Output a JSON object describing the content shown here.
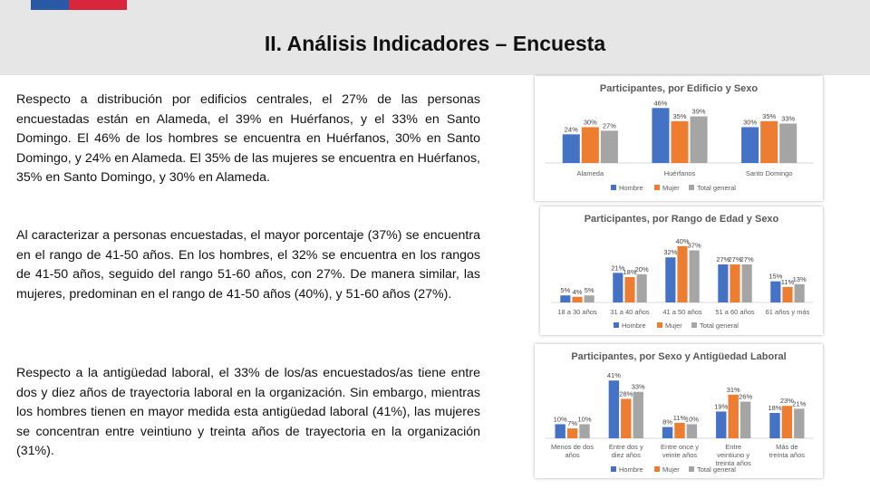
{
  "header": {
    "title": "II. Análisis Indicadores – Encuesta"
  },
  "paragraphs": [
    "Respecto a distribución por edificios centrales, el 27% de las personas encuestadas están en Alameda, el 39% en Huérfanos, y el 33% en Santo Domingo. El 46% de los hombres se encuentra en Huérfanos, 30% en Santo Domingo, y 24% en Alameda. El 35% de las mujeres se encuentra en Huérfanos, 35% en Santo Domingo, y 30% en Alameda.",
    "Al caracterizar a personas encuestadas, el mayor porcentaje (37%) se encuentra en el rango de 41-50 años. En los hombres, el 32% se encuentra en los rangos de 41-50 años, seguido del rango 51-60 años, con 27%. De manera similar, las mujeres, predominan en el rango de 41-50 años (40%), y 51-60 años (27%).",
    "Respecto a la antigüedad laboral, el 33% de los/as encuestados/as tiene entre dos y diez años de trayectoria laboral en la organización. Sin embargo, mientras los hombres tienen en mayor medida esta antigüedad laboral (41%), las mujeres se concentran entre veintiuno y treinta años de trayectoria en la organización (31%)."
  ],
  "colors": {
    "hombre": "#4472c4",
    "mujer": "#ed7d31",
    "total": "#a5a5a5"
  },
  "chart_data": [
    {
      "type": "bar",
      "title": "Participantes, por Edificio y Sexo",
      "categories": [
        "Alameda",
        "Huérfanos",
        "Santo Domingo"
      ],
      "series": [
        {
          "name": "Hombre",
          "values": [
            24,
            46,
            30
          ]
        },
        {
          "name": "Mujer",
          "values": [
            30,
            35,
            35
          ]
        },
        {
          "name": "Total general",
          "values": [
            27,
            39,
            33
          ]
        }
      ],
      "ylim": [
        0,
        50
      ],
      "legend": "bottom"
    },
    {
      "type": "bar",
      "title": "Participantes, por Rango de Edad y Sexo",
      "categories": [
        "18 a 30 años",
        "31 a 40 años",
        "41 a 50 años",
        "51 a 60 años",
        "61 años y más"
      ],
      "series": [
        {
          "name": "Hombre",
          "values": [
            5,
            21,
            32,
            27,
            15
          ]
        },
        {
          "name": "Mujer",
          "values": [
            4,
            18,
            40,
            27,
            11
          ]
        },
        {
          "name": "Total general",
          "values": [
            5,
            20,
            37,
            27,
            13
          ]
        }
      ],
      "ylim": [
        0,
        45
      ],
      "legend": "bottom"
    },
    {
      "type": "bar",
      "title": "Participantes, por Sexo y Antigüedad Laboral",
      "categories": [
        "Menos de dos años",
        "Entre dos y diez años",
        "Entre once y veinte años",
        "Entre veintiuno y treinta años",
        "Más de treinta años"
      ],
      "series": [
        {
          "name": "Hombre",
          "values": [
            10,
            41,
            8,
            19,
            18
          ]
        },
        {
          "name": "Mujer",
          "values": [
            7,
            28,
            11,
            31,
            23
          ]
        },
        {
          "name": "Total general",
          "values": [
            10,
            33,
            10,
            26,
            21
          ]
        }
      ],
      "ylim": [
        0,
        45
      ],
      "legend": "bottom"
    }
  ]
}
